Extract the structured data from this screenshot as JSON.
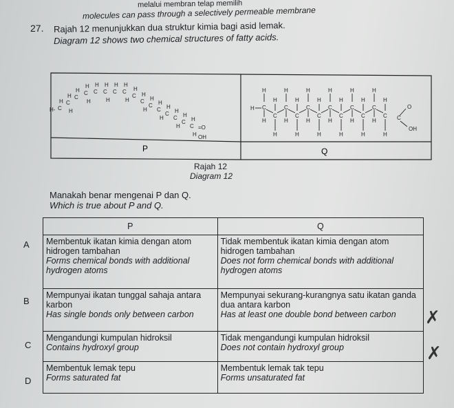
{
  "header": {
    "line1": "melalui membran telap memilih",
    "line2": "molecules can pass through a selectively permeable membrane"
  },
  "question": {
    "number": "27.",
    "malay": "Rajah 12 menunjukkan dua struktur kimia bagi asid lemak.",
    "english_1": "Diagram 12 shows two chemical structures of fatty acids.",
    "ask_malay": "Manakah benar mengenai P dan Q.",
    "ask_english": "Which is true about P and Q."
  },
  "diagram": {
    "label_p": "P",
    "label_q": "Q",
    "caption_malay": "Rajah 12",
    "caption_english": "Diagram 12"
  },
  "table": {
    "headers": [
      "P",
      "Q"
    ],
    "rows": [
      {
        "label": "A",
        "p_malay": "Membentuk ikatan kimia dengan atom hidrogen tambahan",
        "p_english": "Forms chemical bonds with additional hydrogen atoms",
        "q_malay": "Tidak membentuk ikatan kimia dengan atom hidrogen tambahan",
        "q_english": "Does not form chemical bonds with additional hydrogen atoms"
      },
      {
        "label": "B",
        "p_malay": "Mempunyai ikatan tunggal sahaja antara karbon",
        "p_english": "Has single bonds only between carbon",
        "q_malay": "Mempunyai sekurang-kurangnya satu ikatan ganda dua antara karbon",
        "q_english": "Has at least one double bond between carbon"
      },
      {
        "label": "C",
        "p_malay": "Mengandungi kumpulan hidroksil",
        "p_english": "Contains hydroxyl group",
        "q_malay": "Tidak mengandungi kumpulan hidroksil",
        "q_english": "Does not contain hydroxyl group"
      },
      {
        "label": "D",
        "p_malay": "Membentuk lemak tepu",
        "p_english": "Forms saturated fat",
        "q_malay": "Membentuk lemak tak tepu",
        "q_english": "Forms unsaturated fat"
      }
    ]
  }
}
